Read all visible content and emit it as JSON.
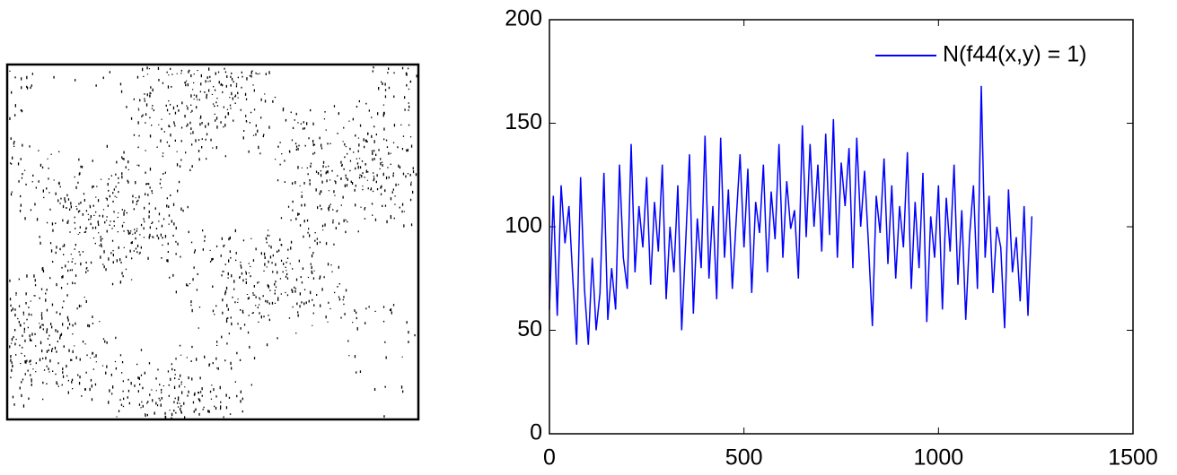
{
  "chart_data": {
    "type": "line",
    "x": [
      0,
      10,
      20,
      30,
      40,
      50,
      60,
      70,
      80,
      90,
      100,
      110,
      120,
      130,
      140,
      150,
      160,
      170,
      180,
      190,
      200,
      210,
      220,
      230,
      240,
      250,
      260,
      270,
      280,
      290,
      300,
      310,
      320,
      330,
      340,
      350,
      360,
      370,
      380,
      390,
      400,
      410,
      420,
      430,
      440,
      450,
      460,
      470,
      480,
      490,
      500,
      510,
      520,
      530,
      540,
      550,
      560,
      570,
      580,
      590,
      600,
      610,
      620,
      630,
      640,
      650,
      660,
      670,
      680,
      690,
      700,
      710,
      720,
      730,
      740,
      750,
      760,
      770,
      780,
      790,
      800,
      810,
      820,
      830,
      840,
      850,
      860,
      870,
      880,
      890,
      900,
      910,
      920,
      930,
      940,
      950,
      960,
      970,
      980,
      990,
      1000,
      1010,
      1020,
      1030,
      1040,
      1050,
      1060,
      1070,
      1080,
      1090,
      1100,
      1110,
      1120,
      1130,
      1140,
      1150,
      1160,
      1170,
      1180,
      1190,
      1200,
      1210,
      1220,
      1230,
      1240
    ],
    "series": [
      {
        "name": "N(f44(x,y) = 1)",
        "color": "#0000ff",
        "values": [
          60,
          115,
          57,
          120,
          92,
          110,
          75,
          43,
          124,
          70,
          43,
          85,
          50,
          68,
          126,
          55,
          80,
          60,
          130,
          85,
          70,
          140,
          78,
          110,
          90,
          124,
          72,
          112,
          88,
          130,
          65,
          100,
          78,
          120,
          50,
          92,
          135,
          58,
          104,
          80,
          144,
          75,
          110,
          65,
          143,
          85,
          118,
          70,
          103,
          135,
          90,
          128,
          68,
          112,
          97,
          130,
          78,
          117,
          94,
          140,
          85,
          122,
          99,
          108,
          75,
          149,
          95,
          140,
          100,
          130,
          88,
          145,
          96,
          152,
          85,
          131,
          110,
          138,
          80,
          143,
          100,
          127,
          92,
          52,
          115,
          97,
          133,
          82,
          120,
          75,
          110,
          90,
          136,
          70,
          112,
          80,
          126,
          54,
          105,
          85,
          120,
          60,
          114,
          88,
          130,
          72,
          108,
          55,
          96,
          120,
          70,
          168,
          85,
          115,
          68,
          100,
          90,
          51,
          118,
          78,
          95,
          64,
          110,
          57,
          105
        ]
      }
    ],
    "xlim": [
      0,
      1500
    ],
    "xticks": [
      0,
      500,
      1000,
      1500
    ],
    "ylim": [
      0,
      200
    ],
    "yticks": [
      0,
      50,
      100,
      150,
      200
    ],
    "grid": false,
    "legend": "upper right"
  }
}
